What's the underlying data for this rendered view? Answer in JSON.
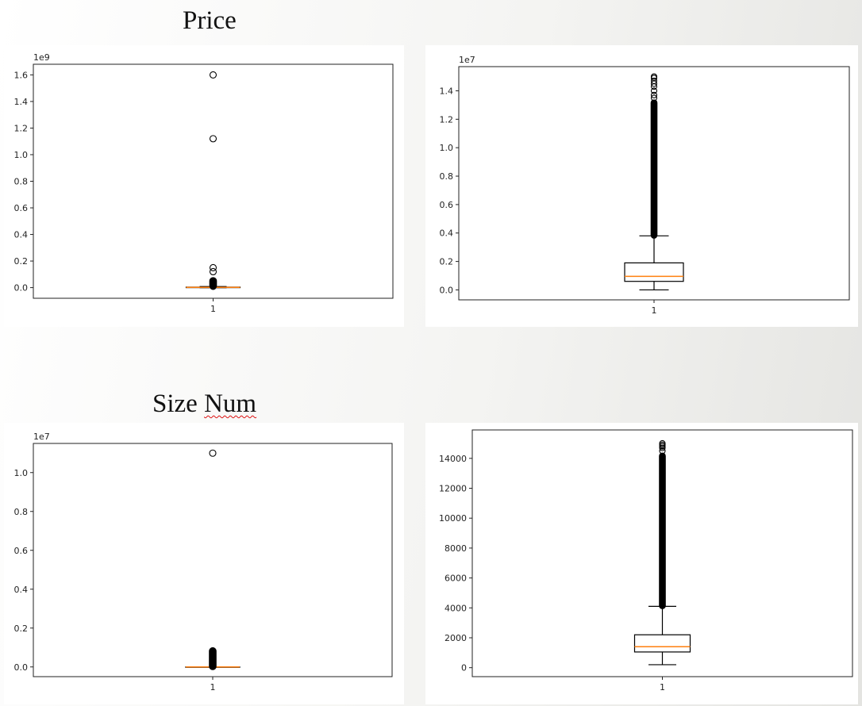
{
  "sections": [
    {
      "title_before": "Price",
      "title_squiggle": ""
    },
    {
      "title_before": "Size ",
      "title_squiggle": "Num"
    }
  ],
  "chart_data": [
    {
      "type": "boxplot",
      "section": "Price",
      "offset_text": "1e9",
      "x_tick_labels": [
        "1"
      ],
      "y_tick_labels": [
        "0.0",
        "0.2",
        "0.4",
        "0.6",
        "0.8",
        "1.0",
        "1.2",
        "1.4",
        "1.6"
      ],
      "ylim": [
        -0.08,
        1.68
      ],
      "box": {
        "whisker_low": 0.0,
        "q1": 0.0,
        "median": 0.002,
        "q3": 0.004,
        "whisker_high": 0.008
      },
      "outliers": [
        1.6,
        1.12,
        0.15,
        0.12,
        0.05,
        0.04,
        0.03,
        0.02,
        0.015,
        0.01
      ],
      "outlier_band": [
        0.012,
        0.055
      ]
    },
    {
      "type": "boxplot",
      "section": "Price",
      "offset_text": "1e7",
      "x_tick_labels": [
        "1"
      ],
      "y_tick_labels": [
        "0.0",
        "0.2",
        "0.4",
        "0.6",
        "0.8",
        "1.0",
        "1.2",
        "1.4"
      ],
      "ylim": [
        -0.07,
        1.57
      ],
      "box": {
        "whisker_low": 0.0,
        "q1": 0.06,
        "median": 0.095,
        "q3": 0.19,
        "whisker_high": 0.38
      },
      "outliers": [
        1.5,
        1.49,
        1.47,
        1.45,
        1.43,
        1.4,
        1.37,
        1.35
      ],
      "outlier_band": [
        0.38,
        1.32
      ]
    },
    {
      "type": "boxplot",
      "section": "Size Num",
      "offset_text": "1e7",
      "x_tick_labels": [
        "1"
      ],
      "y_tick_labels": [
        "0.0",
        "0.2",
        "0.4",
        "0.6",
        "0.8",
        "1.0"
      ],
      "ylim": [
        -0.05,
        1.15
      ],
      "box": {
        "whisker_low": 0.0,
        "q1": 0.0,
        "median": 0.0,
        "q3": 0.0,
        "whisker_high": 0.0
      },
      "outliers": [
        1.1
      ],
      "outlier_band": [
        0.0,
        0.085
      ]
    },
    {
      "type": "boxplot",
      "section": "Size Num",
      "offset_text": "",
      "x_tick_labels": [
        "1"
      ],
      "y_tick_labels": [
        "0",
        "2000",
        "4000",
        "6000",
        "8000",
        "10000",
        "12000",
        "14000"
      ],
      "ylim": [
        -600,
        15900
      ],
      "box": {
        "whisker_low": 200,
        "q1": 1050,
        "median": 1400,
        "q3": 2200,
        "whisker_high": 4100
      },
      "outliers": [
        15000,
        14900,
        14800,
        14700,
        14500,
        13000
      ],
      "outlier_band": [
        4100,
        14200
      ]
    }
  ]
}
